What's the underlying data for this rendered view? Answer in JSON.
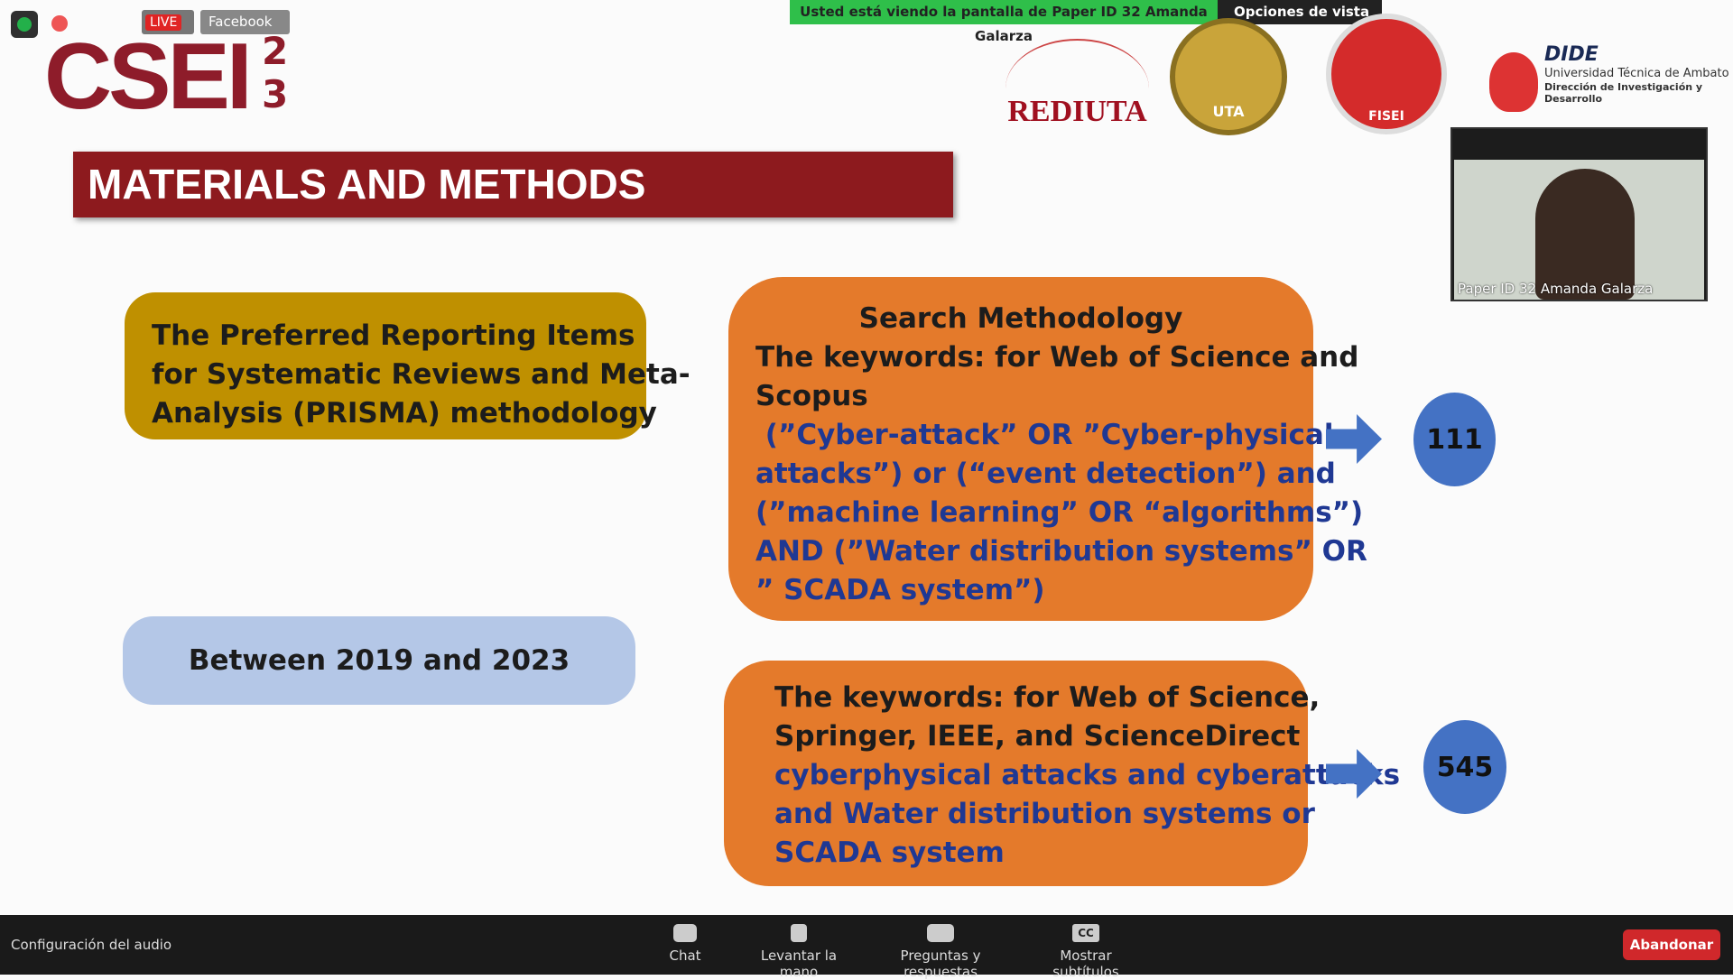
{
  "top_bar": {
    "live": "LIVE",
    "platform": "Facebook",
    "banner": "Usted está viendo la pantalla de Paper ID 32 Amanda Galarza",
    "view_options": "Opciones de vista"
  },
  "logos": {
    "csei": "CSEI",
    "sup": "2",
    "sub": "3",
    "rediuta": "REDIUTA",
    "uta": "UTA",
    "fisei": "FISEI",
    "dide": "DIDE",
    "dide_line1": "Universidad Técnica de Ambato",
    "dide_line2": "Dirección de Investigación y Desarrollo"
  },
  "slide": {
    "title": "MATERIALS AND METHODS",
    "prisma": [
      "The Preferred Reporting Items",
      "for Systematic Reviews and Meta-",
      "Analysis (PRISMA) methodology"
    ],
    "period": "Between 2019 and 2023",
    "search": {
      "heading": "Search Methodology",
      "keywords": [
        "The keywords: for Web of Science and",
        "Scopus"
      ],
      "query": [
        " (”Cyber-attack” OR ”Cyber-physical",
        "attacks”) or (“event detection”) and",
        "(”machine learning” OR “algorithms”)",
        "AND (”Water distribution systems” OR",
        "” SCADA system”)"
      ],
      "result": 111
    },
    "search2": {
      "keywords": [
        "The keywords: for Web of Science,",
        "Springer, IEEE, and ScienceDirect"
      ],
      "query": [
        "cyberphysical attacks and cyberattacks",
        "and Water distribution systems or",
        "SCADA system"
      ],
      "result": 545
    }
  },
  "video": {
    "name": "Paper ID 32 Amanda Galarza"
  },
  "toolbar": {
    "audio": "Configuración del audio",
    "chat": "Chat",
    "raise_hand": "Levantar la mano",
    "qa": "Preguntas y respuestas",
    "cc_icon": "CC",
    "captions": "Mostrar subtítulos",
    "leave": "Abandonar"
  }
}
